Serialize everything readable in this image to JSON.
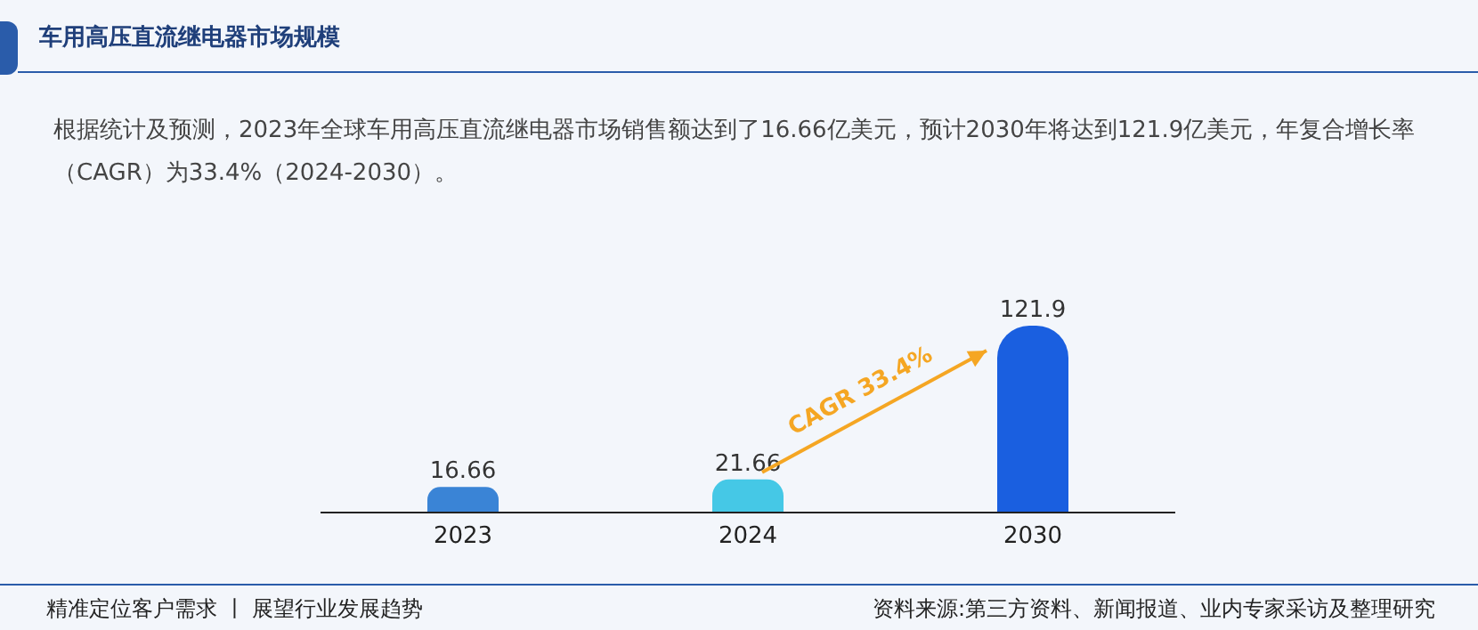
{
  "chart_data": {
    "type": "bar",
    "title": "车用高压直流继电器市场规模",
    "subtitle": "根据统计及预测，2023年全球车用高压直流继电器市场销售额达到了16.66亿美元，预计2030年将达到121.9亿美元，年复合增长率（CAGR）为33.4%（2024-2030）。",
    "categories": [
      "2023",
      "2024",
      "2030"
    ],
    "values": [
      16.66,
      21.66,
      121.9
    ],
    "colors": [
      "#3a84d6",
      "#45c8e6",
      "#1a5fe0"
    ],
    "data_labels": true,
    "annotations": [
      "CAGR 33.4%",
      "精准定位客户需求 丨 展望行业发展趋势",
      "资料来源:第三方资料、新闻报道、业内专家采访及整理研究"
    ],
    "legend": false,
    "grid": false
  }
}
